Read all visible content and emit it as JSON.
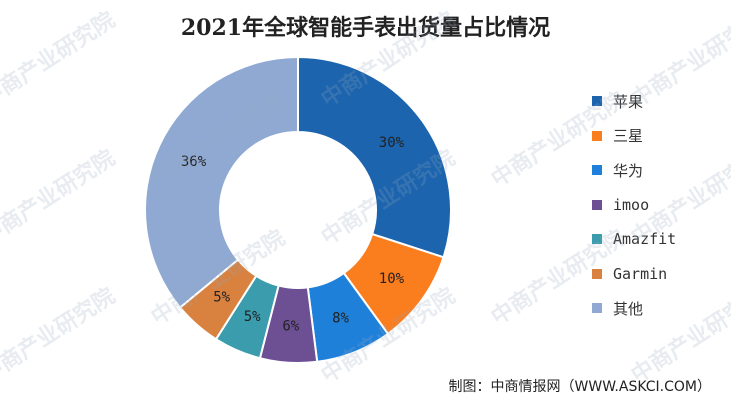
{
  "chart_data": {
    "type": "pie",
    "title": "2021年全球智能手表出货量占比情况",
    "categories": [
      "苹果",
      "三星",
      "华为",
      "imoo",
      "Amazfit",
      "Garmin",
      "其他"
    ],
    "values": [
      30,
      10,
      8,
      6,
      5,
      5,
      36
    ],
    "value_labels": [
      "30%",
      "10%",
      "8%",
      "6%",
      "5%",
      "5%",
      "36%"
    ],
    "colors": [
      "#1c64ad",
      "#fa7d1e",
      "#1f80da",
      "#6d4f94",
      "#3b9cad",
      "#d9813e",
      "#8fa9d2"
    ],
    "donut": true,
    "legend_position": "right"
  },
  "watermark_text": "中商产业研究院",
  "source": "制图：中商情报网（WWW.ASKCI.COM）"
}
